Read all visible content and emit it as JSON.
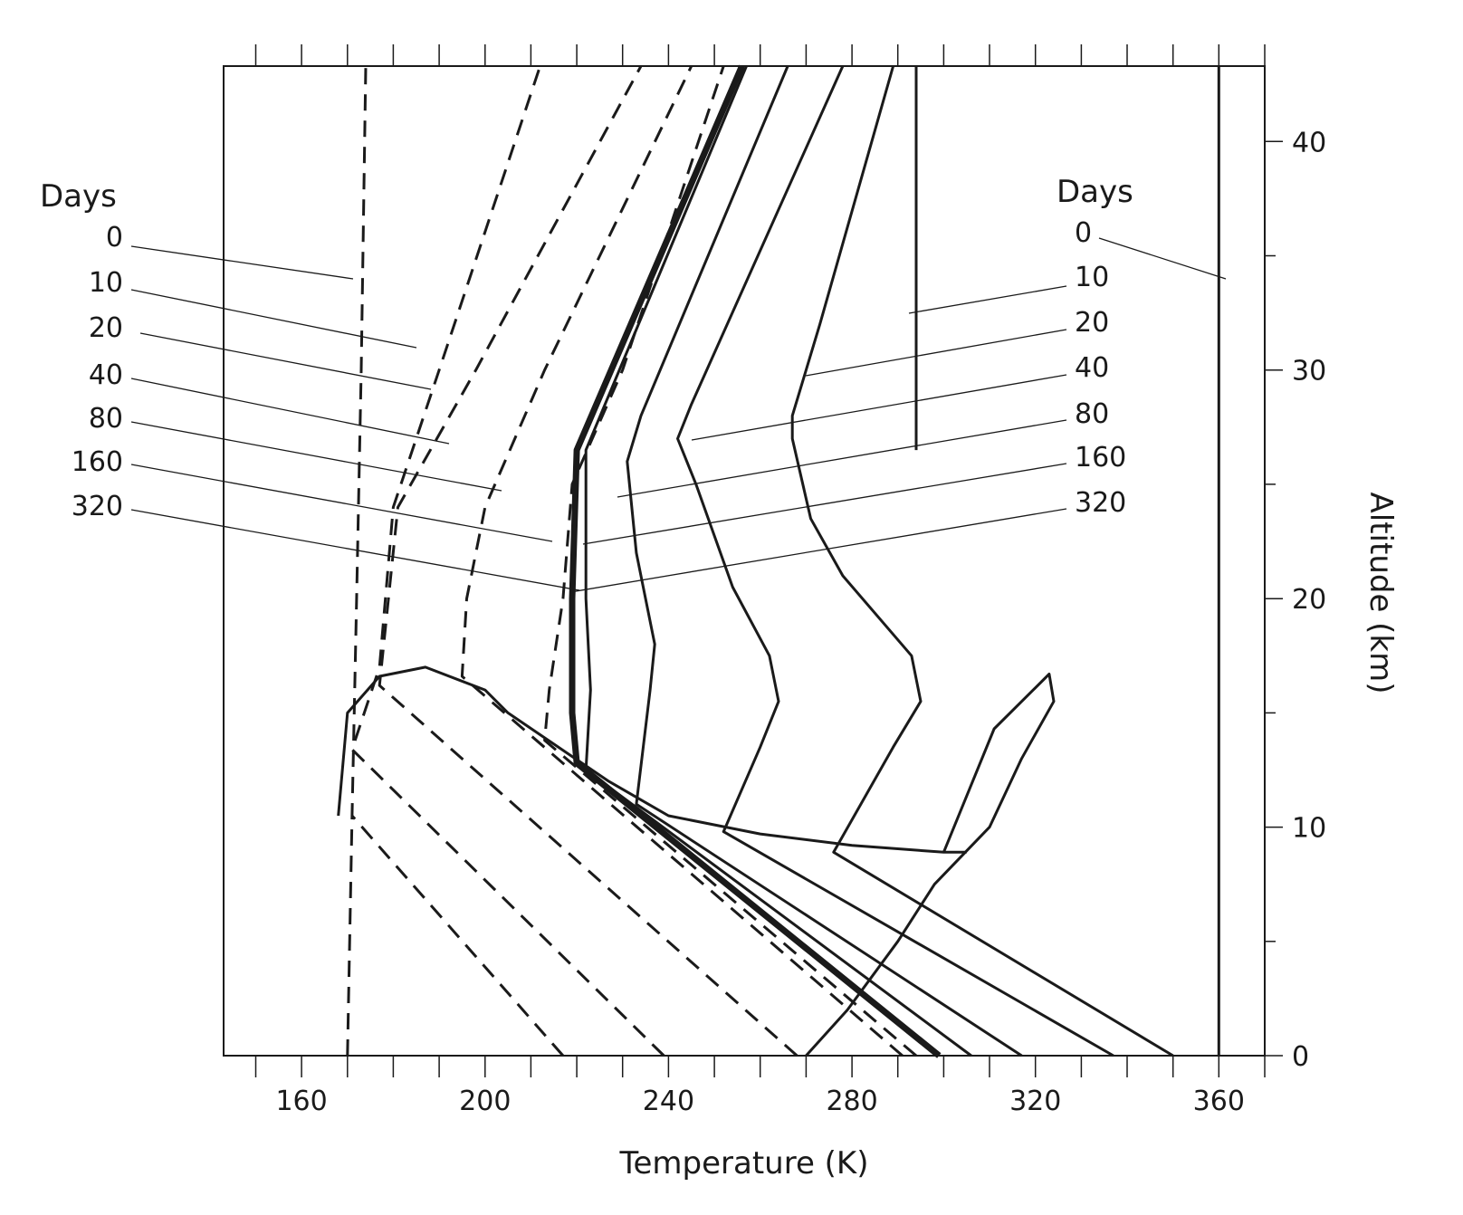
{
  "chart_data": {
    "type": "line",
    "xlabel": "Temperature (K)",
    "ylabel": "Altitude (km)",
    "xlim": [
      143,
      370
    ],
    "ylim": [
      0,
      43.3
    ],
    "x_ticks": [
      160,
      200,
      240,
      280,
      320,
      360
    ],
    "y_ticks": [
      0,
      10,
      20,
      30,
      40
    ],
    "grid": false,
    "left_legend": {
      "title": "Days",
      "entries": [
        "0",
        "10",
        "20",
        "40",
        "80",
        "160",
        "320"
      ]
    },
    "right_legend": {
      "title": "Days",
      "entries": [
        "0",
        "10",
        "20",
        "40",
        "80",
        "160",
        "320"
      ]
    },
    "series": [
      {
        "group": "dashed",
        "style": "dashed",
        "points": [
          [
            170,
            0
          ],
          [
            171,
            10.5
          ],
          [
            172,
            20
          ],
          [
            173,
            30
          ],
          [
            174,
            43.3
          ]
        ]
      },
      {
        "group": "dashed",
        "style": "dashed",
        "points": [
          [
            217,
            0
          ],
          [
            171,
            10.5
          ]
        ]
      },
      {
        "group": "dashed",
        "style": "dashed",
        "points": [
          [
            239,
            0
          ],
          [
            171,
            13.4
          ],
          [
            177,
            17
          ],
          [
            180,
            24
          ],
          [
            190,
            30
          ],
          [
            212,
            43.3
          ]
        ]
      },
      {
        "group": "dashed",
        "style": "dashed",
        "points": [
          [
            268,
            0
          ],
          [
            177,
            16.2
          ],
          [
            181,
            24
          ],
          [
            198,
            30
          ],
          [
            234,
            43.3
          ]
        ]
      },
      {
        "group": "dashed",
        "style": "dashed",
        "points": [
          [
            291,
            0
          ],
          [
            195,
            16.6
          ],
          [
            196,
            20
          ],
          [
            200,
            24
          ],
          [
            213,
            30
          ],
          [
            245,
            43.3
          ]
        ]
      },
      {
        "group": "dashed",
        "style": "dashed",
        "points": [
          [
            294,
            0
          ],
          [
            213,
            13.8
          ],
          [
            214,
            16
          ],
          [
            217,
            20
          ],
          [
            219,
            25
          ],
          [
            230,
            30
          ],
          [
            252,
            43.3
          ]
        ]
      },
      {
        "group": "solid",
        "style": "solid",
        "points": [
          [
            299,
            0
          ],
          [
            220,
            12.8
          ],
          [
            219,
            15
          ],
          [
            219,
            20
          ],
          [
            220,
            26.5
          ],
          [
            256,
            43.3
          ]
        ]
      },
      {
        "group": "solid",
        "style": "solid",
        "points": [
          [
            306,
            0
          ],
          [
            222,
            12.5
          ],
          [
            223,
            16
          ],
          [
            222,
            20
          ],
          [
            222,
            26.5
          ],
          [
            257,
            43.3
          ]
        ]
      },
      {
        "group": "solid",
        "style": "solid",
        "points": [
          [
            317,
            0
          ],
          [
            233,
            11
          ],
          [
            236,
            16
          ],
          [
            237,
            18
          ],
          [
            233,
            22
          ],
          [
            231,
            26
          ],
          [
            234,
            28
          ],
          [
            266,
            43.3
          ]
        ]
      },
      {
        "group": "solid",
        "style": "solid",
        "points": [
          [
            337,
            0
          ],
          [
            252,
            9.8
          ],
          [
            260,
            13.5
          ],
          [
            264,
            15.5
          ],
          [
            262,
            17.5
          ],
          [
            254,
            20.5
          ],
          [
            246,
            25
          ],
          [
            242,
            27
          ],
          [
            245,
            28.5
          ],
          [
            278,
            43.3
          ]
        ]
      },
      {
        "group": "solid",
        "style": "solid",
        "points": [
          [
            350,
            0
          ],
          [
            276,
            8.9
          ],
          [
            289,
            13.5
          ],
          [
            295,
            15.5
          ],
          [
            293,
            17.5
          ],
          [
            278,
            21
          ],
          [
            271,
            23.5
          ],
          [
            267,
            27
          ],
          [
            267,
            28
          ],
          [
            273,
            32
          ],
          [
            289,
            43.3
          ]
        ]
      },
      {
        "group": "solid",
        "style": "solid",
        "points": [
          [
            360,
            0
          ],
          [
            360,
            43.3
          ]
        ]
      },
      {
        "group": "solid",
        "style": "solid",
        "points": [
          [
            168,
            10.5
          ],
          [
            170,
            15
          ],
          [
            177,
            16.6
          ],
          [
            187,
            17
          ],
          [
            200,
            16
          ],
          [
            205,
            15
          ],
          [
            227,
            12
          ],
          [
            240,
            10.5
          ],
          [
            260,
            9.7
          ],
          [
            280,
            9.2
          ],
          [
            300,
            8.9
          ],
          [
            305,
            8.9
          ]
        ]
      },
      {
        "group": "solid",
        "style": "solid",
        "points": [
          [
            300,
            8.9
          ],
          [
            311,
            14.3
          ],
          [
            323,
            16.7
          ],
          [
            324,
            15.5
          ],
          [
            317,
            13
          ],
          [
            310,
            10
          ],
          [
            298,
            7.5
          ],
          [
            290,
            5
          ],
          [
            279,
            2
          ],
          [
            270,
            0
          ]
        ]
      },
      {
        "group": "solid",
        "style": "solid",
        "points": [
          [
            294,
            26.5
          ],
          [
            294,
            43.3
          ]
        ]
      }
    ]
  }
}
